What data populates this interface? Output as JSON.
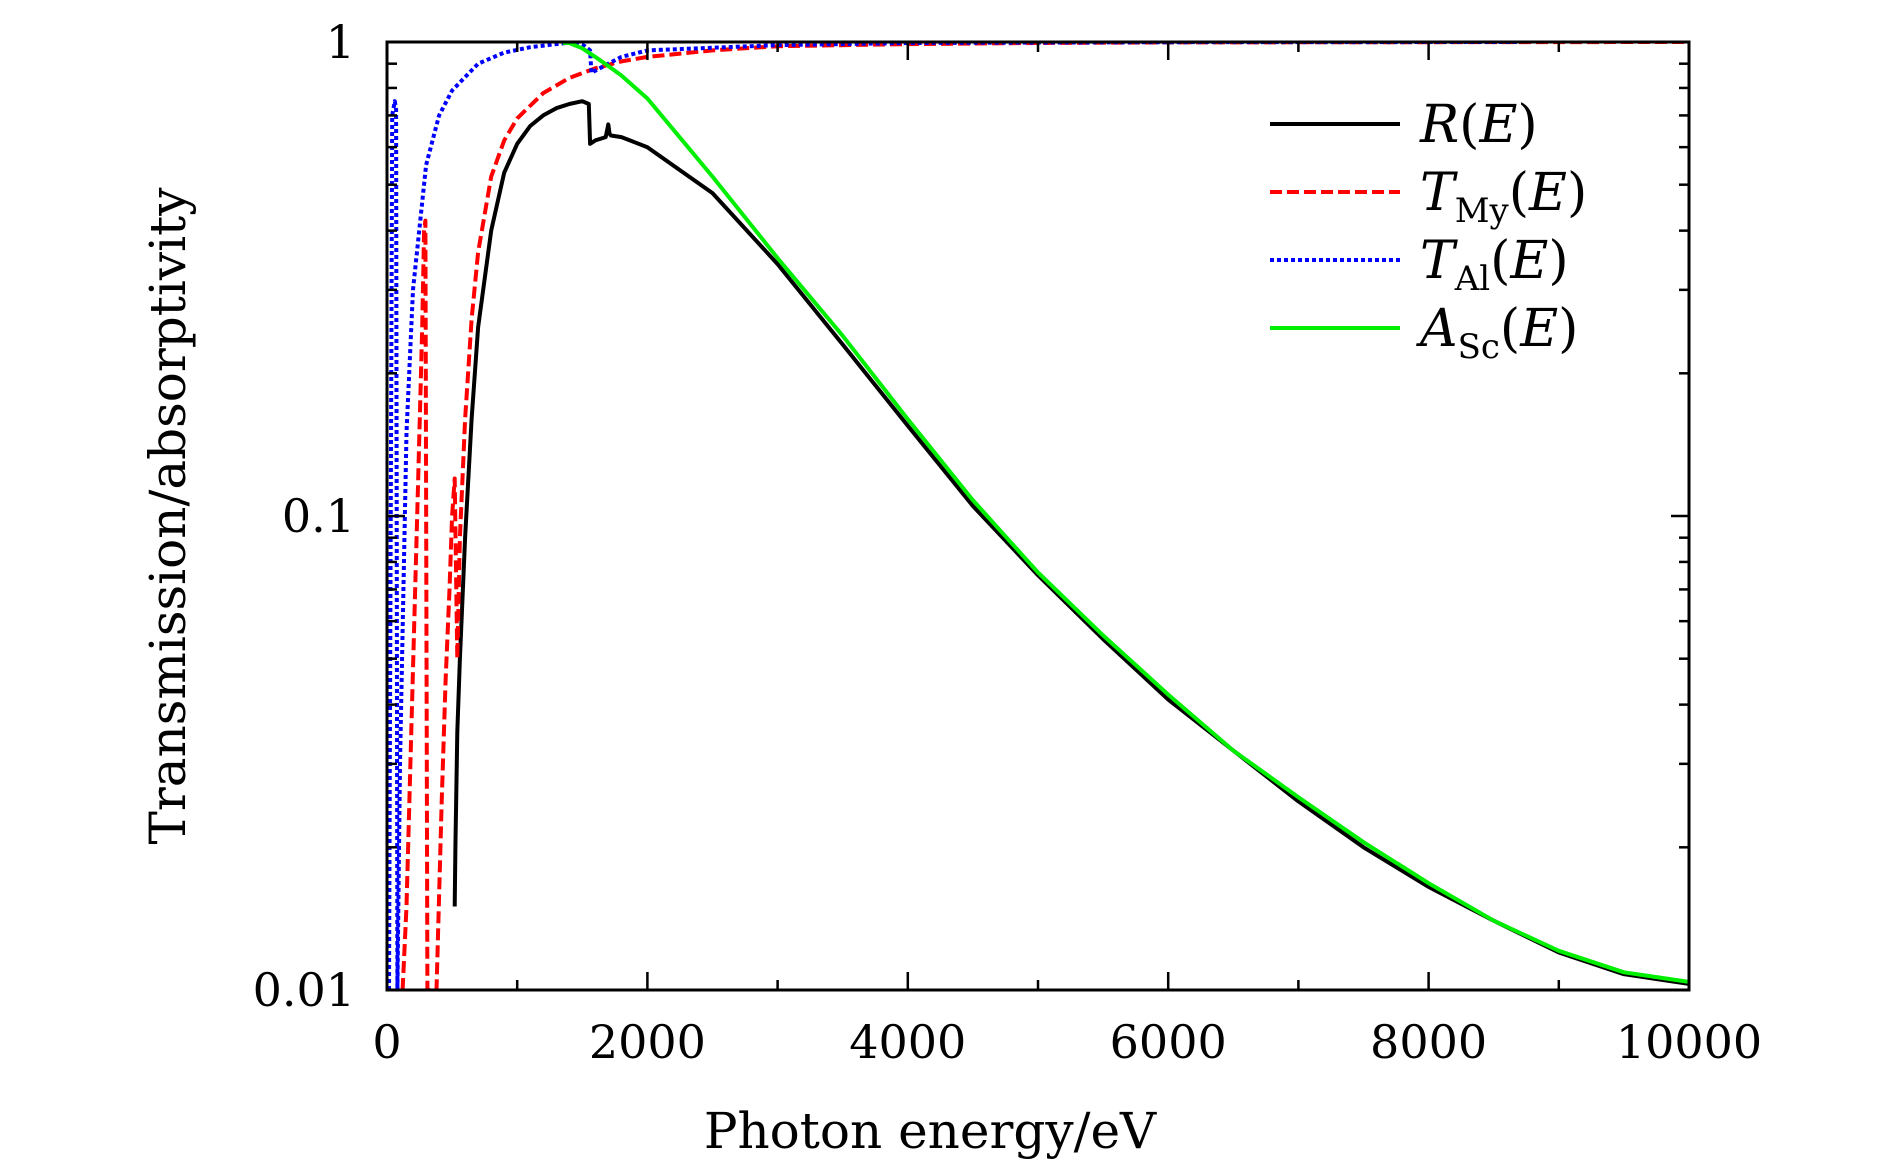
{
  "chart_data": {
    "type": "line",
    "title": "",
    "xlabel": "Photon energy/eV",
    "ylabel": "Transmission/absorptivity",
    "xlim": [
      0,
      10000
    ],
    "ylim": [
      0.01,
      1
    ],
    "yscale": "log",
    "grid": false,
    "legend_position": "top-right",
    "x_ticks": [
      0,
      2000,
      4000,
      6000,
      8000,
      10000
    ],
    "x_tick_labels": [
      "0",
      "2000",
      "4000",
      "6000",
      "8000",
      "10000"
    ],
    "y_ticks": [
      0.01,
      0.1,
      1
    ],
    "y_tick_labels": [
      "0.01",
      "0.1",
      "1"
    ],
    "series": [
      {
        "name": "R(E)",
        "legend_main": "R",
        "legend_sub": "",
        "color": "#000000",
        "style": "solid",
        "x": [
          520,
          525,
          540,
          560,
          600,
          650,
          700,
          800,
          900,
          1000,
          1100,
          1200,
          1300,
          1400,
          1500,
          1550,
          1560,
          1600,
          1680,
          1700,
          1710,
          1720,
          1800,
          2000,
          2500,
          3000,
          3500,
          4000,
          4500,
          5000,
          5500,
          6000,
          6500,
          7000,
          7500,
          8000,
          8500,
          9000,
          9500,
          10000
        ],
        "y": [
          0.015,
          0.02,
          0.035,
          0.05,
          0.09,
          0.16,
          0.25,
          0.4,
          0.53,
          0.61,
          0.665,
          0.7,
          0.725,
          0.74,
          0.75,
          0.74,
          0.61,
          0.62,
          0.63,
          0.67,
          0.64,
          0.635,
          0.63,
          0.6,
          0.48,
          0.34,
          0.23,
          0.155,
          0.105,
          0.075,
          0.055,
          0.041,
          0.032,
          0.025,
          0.02,
          0.0165,
          0.014,
          0.012,
          0.0108,
          0.0103
        ]
      },
      {
        "name": "T_My(E)",
        "legend_main": "T",
        "legend_sub": "My",
        "color": "#ff0000",
        "style": "dashed",
        "x": [
          120,
          150,
          180,
          210,
          240,
          270,
          285,
          295,
          310,
          380,
          420,
          450,
          480,
          500,
          520,
          540,
          560,
          600,
          650,
          700,
          800,
          900,
          1000,
          1200,
          1400,
          1600,
          1800,
          2000,
          2500,
          3000,
          4000,
          5000,
          6000,
          8000,
          10000
        ],
        "y": [
          0.01,
          0.015,
          0.03,
          0.06,
          0.12,
          0.25,
          0.4,
          0.42,
          0.01,
          0.01,
          0.025,
          0.045,
          0.07,
          0.1,
          0.12,
          0.05,
          0.09,
          0.16,
          0.26,
          0.36,
          0.52,
          0.62,
          0.69,
          0.78,
          0.84,
          0.88,
          0.91,
          0.93,
          0.96,
          0.98,
          0.99,
          0.995,
          0.998,
          0.999,
          1.0
        ]
      },
      {
        "name": "T_Al(E)",
        "legend_main": "T",
        "legend_sub": "Al",
        "color": "#0000ff",
        "style": "dotted",
        "x": [
          15,
          40,
          60,
          70,
          80,
          100,
          150,
          200,
          300,
          400,
          500,
          700,
          900,
          1100,
          1300,
          1450,
          1520,
          1560,
          1570,
          1600,
          1700,
          1800,
          2000,
          3000,
          4000,
          6000,
          8700
        ],
        "y": [
          0.01,
          0.7,
          0.75,
          0.72,
          0.01,
          0.03,
          0.15,
          0.3,
          0.55,
          0.7,
          0.79,
          0.9,
          0.95,
          0.975,
          0.99,
          1.0,
          0.98,
          0.96,
          0.86,
          0.87,
          0.9,
          0.93,
          0.96,
          0.985,
          0.995,
          0.999,
          1.0
        ]
      },
      {
        "name": "A_Sc(E)",
        "legend_main": "A",
        "legend_sub": "Sc",
        "color": "#00ee00",
        "style": "solid",
        "x": [
          1350,
          1400,
          1500,
          1600,
          1700,
          1800,
          2000,
          2500,
          3000,
          3500,
          4000,
          4500,
          5000,
          5500,
          6000,
          6500,
          7000,
          7500,
          8000,
          8500,
          9000,
          9500,
          10000
        ],
        "y": [
          0.995,
          0.995,
          0.97,
          0.93,
          0.89,
          0.85,
          0.76,
          0.52,
          0.35,
          0.24,
          0.16,
          0.108,
          0.076,
          0.056,
          0.042,
          0.032,
          0.0255,
          0.0205,
          0.0168,
          0.014,
          0.0121,
          0.0109,
          0.0104
        ]
      }
    ]
  }
}
